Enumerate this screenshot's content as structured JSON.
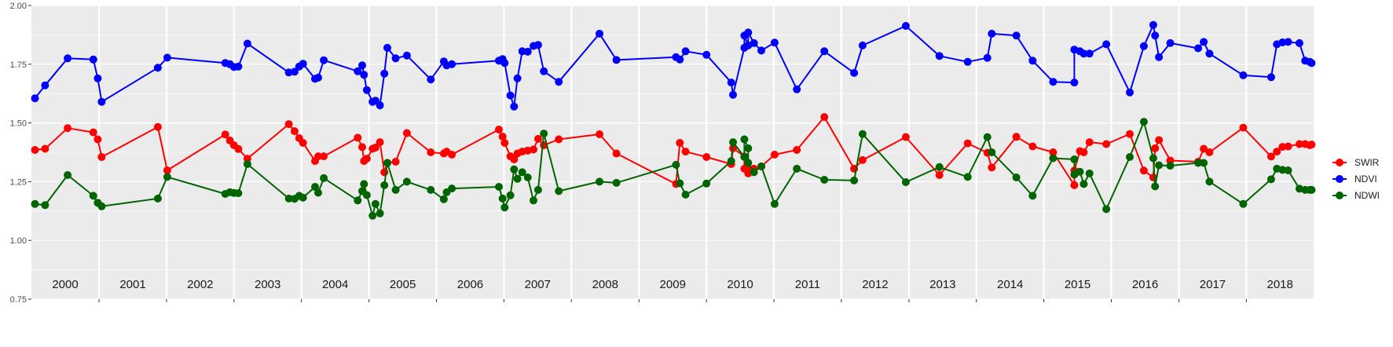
{
  "chart_data": {
    "type": "line",
    "title": "",
    "xlabel": "",
    "ylabel": "",
    "ylim": [
      0.75,
      2.0
    ],
    "y_ticks": [
      "0.75",
      "1.00",
      "1.25",
      "1.50",
      "1.75",
      "2.00"
    ],
    "xlim": [
      "2000-01-01",
      "2018-12-31"
    ],
    "year_labels": [
      "2000",
      "2001",
      "2002",
      "2003",
      "2004",
      "2005",
      "2006",
      "2007",
      "2008",
      "2009",
      "2010",
      "2011",
      "2012",
      "2013",
      "2014",
      "2015",
      "2016",
      "2017",
      "2018"
    ],
    "grid": true,
    "legend_position": "right",
    "series": [
      {
        "name": "SWIR",
        "color": "#ff0000",
        "x": [
          "2000-01-20",
          "2000-03-15",
          "2000-07-15",
          "2000-12-01",
          "2000-12-25",
          "2001-01-15",
          "2001-11-15",
          "2002-01-05",
          "2002-11-15",
          "2002-12-10",
          "2003-01-01",
          "2003-01-25",
          "2003-03-15",
          "2003-10-25",
          "2003-11-25",
          "2003-12-20",
          "2004-01-10",
          "2004-03-15",
          "2004-04-01",
          "2004-05-01",
          "2004-11-01",
          "2004-11-25",
          "2004-12-05",
          "2004-12-20",
          "2005-01-20",
          "2005-02-05",
          "2005-03-01",
          "2005-03-25",
          "2005-04-10",
          "2005-05-25",
          "2005-07-25",
          "2005-12-01",
          "2006-02-10",
          "2006-02-25",
          "2006-03-25",
          "2006-12-05",
          "2006-12-25",
          "2007-01-05",
          "2007-02-05",
          "2007-02-25",
          "2007-03-15",
          "2007-04-10",
          "2007-05-10",
          "2007-06-10",
          "2007-07-05",
          "2007-08-05",
          "2007-10-25",
          "2008-06-01",
          "2008-09-01",
          "2009-07-20",
          "2009-08-10",
          "2009-09-10",
          "2010-01-01",
          "2010-05-15",
          "2010-05-25",
          "2010-07-25",
          "2010-07-25",
          "2010-08-15",
          "2010-08-15",
          "2010-09-15",
          "2010-10-25",
          "2011-01-05",
          "2011-05-05",
          "2011-10-01",
          "2012-03-10",
          "2012-04-25",
          "2012-12-15",
          "2013-06-15",
          "2013-11-15",
          "2014-03-01",
          "2014-03-25",
          "2014-08-05",
          "2014-11-01",
          "2015-02-20",
          "2015-06-15",
          "2015-06-15",
          "2015-07-15",
          "2015-08-05",
          "2015-09-05",
          "2015-12-05",
          "2016-04-10",
          "2016-06-25",
          "2016-08-15",
          "2016-08-25",
          "2016-09-15",
          "2016-11-15",
          "2017-04-15",
          "2017-05-15",
          "2017-06-15",
          "2017-12-15",
          "2018-05-15",
          "2018-06-15",
          "2018-07-15",
          "2018-08-15",
          "2018-10-15",
          "2018-11-15",
          "2018-12-10",
          "2018-12-20"
        ],
        "values": [
          1.385,
          1.39,
          1.478,
          1.46,
          1.43,
          1.355,
          1.483,
          1.298,
          1.451,
          1.425,
          1.405,
          1.389,
          1.348,
          1.495,
          1.465,
          1.435,
          1.415,
          1.338,
          1.358,
          1.358,
          1.437,
          1.397,
          1.338,
          1.348,
          1.39,
          1.395,
          1.418,
          1.29,
          1.33,
          1.335,
          1.457,
          1.375,
          1.37,
          1.378,
          1.365,
          1.472,
          1.442,
          1.415,
          1.358,
          1.345,
          1.37,
          1.378,
          1.382,
          1.387,
          1.432,
          1.405,
          1.43,
          1.452,
          1.37,
          1.24,
          1.415,
          1.378,
          1.355,
          1.325,
          1.392,
          1.358,
          1.305,
          1.285,
          1.3,
          1.305,
          1.315,
          1.365,
          1.385,
          1.525,
          1.305,
          1.342,
          1.44,
          1.278,
          1.413,
          1.373,
          1.31,
          1.441,
          1.4,
          1.375,
          1.235,
          1.297,
          1.38,
          1.375,
          1.418,
          1.41,
          1.453,
          1.297,
          1.268,
          1.392,
          1.427,
          1.34,
          1.335,
          1.39,
          1.375,
          1.48,
          1.357,
          1.378,
          1.398,
          1.4,
          1.41,
          1.41,
          1.405,
          1.408
        ]
      },
      {
        "name": "NDVI",
        "color": "#0000ff",
        "x": [
          "2000-01-20",
          "2000-03-15",
          "2000-07-15",
          "2000-12-01",
          "2000-12-25",
          "2001-01-15",
          "2001-11-15",
          "2002-01-05",
          "2002-11-15",
          "2002-12-10",
          "2003-01-01",
          "2003-01-25",
          "2003-03-15",
          "2003-10-25",
          "2003-11-25",
          "2003-12-20",
          "2004-01-10",
          "2004-03-15",
          "2004-04-01",
          "2004-05-01",
          "2004-11-01",
          "2004-11-25",
          "2004-12-05",
          "2004-12-20",
          "2005-01-20",
          "2005-02-05",
          "2005-03-01",
          "2005-03-25",
          "2005-04-10",
          "2005-05-25",
          "2005-07-25",
          "2005-12-01",
          "2006-02-10",
          "2006-02-25",
          "2006-03-25",
          "2006-12-05",
          "2006-12-25",
          "2007-01-05",
          "2007-02-05",
          "2007-02-25",
          "2007-03-15",
          "2007-04-10",
          "2007-05-10",
          "2007-06-10",
          "2007-07-05",
          "2007-08-05",
          "2007-10-25",
          "2008-06-01",
          "2008-09-01",
          "2009-07-20",
          "2009-08-10",
          "2009-09-10",
          "2010-01-01",
          "2010-05-15",
          "2010-05-25",
          "2010-07-25",
          "2010-07-25",
          "2010-08-15",
          "2010-08-15",
          "2010-09-15",
          "2010-10-25",
          "2011-01-05",
          "2011-05-05",
          "2011-10-01",
          "2012-03-10",
          "2012-04-25",
          "2012-12-15",
          "2013-06-15",
          "2013-11-15",
          "2014-03-01",
          "2014-03-25",
          "2014-08-05",
          "2014-11-01",
          "2015-02-20",
          "2015-06-15",
          "2015-06-15",
          "2015-07-15",
          "2015-08-05",
          "2015-09-05",
          "2015-12-05",
          "2016-04-10",
          "2016-06-25",
          "2016-08-15",
          "2016-08-25",
          "2016-09-15",
          "2016-11-15",
          "2017-04-15",
          "2017-05-15",
          "2017-06-15",
          "2017-12-15",
          "2018-05-15",
          "2018-06-15",
          "2018-07-15",
          "2018-08-15",
          "2018-10-15",
          "2018-11-15",
          "2018-12-10",
          "2018-12-20"
        ],
        "values": [
          1.605,
          1.66,
          1.775,
          1.77,
          1.69,
          1.59,
          1.735,
          1.778,
          1.755,
          1.75,
          1.738,
          1.74,
          1.838,
          1.715,
          1.718,
          1.74,
          1.752,
          1.688,
          1.693,
          1.767,
          1.72,
          1.745,
          1.705,
          1.64,
          1.59,
          1.595,
          1.575,
          1.71,
          1.82,
          1.775,
          1.787,
          1.685,
          1.762,
          1.745,
          1.75,
          1.765,
          1.772,
          1.755,
          1.617,
          1.57,
          1.69,
          1.805,
          1.803,
          1.828,
          1.832,
          1.72,
          1.675,
          1.88,
          1.768,
          1.78,
          1.77,
          1.805,
          1.79,
          1.672,
          1.62,
          1.82,
          1.872,
          1.83,
          1.885,
          1.84,
          1.808,
          1.842,
          1.643,
          1.805,
          1.713,
          1.83,
          1.913,
          1.785,
          1.76,
          1.777,
          1.88,
          1.872,
          1.765,
          1.675,
          1.672,
          1.812,
          1.805,
          1.795,
          1.795,
          1.835,
          1.63,
          1.827,
          1.917,
          1.872,
          1.78,
          1.84,
          1.818,
          1.845,
          1.795,
          1.703,
          1.695,
          1.835,
          1.843,
          1.845,
          1.84,
          1.765,
          1.76,
          1.755
        ]
      },
      {
        "name": "NDWI",
        "color": "#006400",
        "x": [
          "2000-01-20",
          "2000-03-15",
          "2000-07-15",
          "2000-12-01",
          "2000-12-25",
          "2001-01-15",
          "2001-11-15",
          "2002-01-05",
          "2002-11-15",
          "2002-12-10",
          "2003-01-01",
          "2003-01-25",
          "2003-03-15",
          "2003-10-25",
          "2003-11-25",
          "2003-12-20",
          "2004-01-10",
          "2004-03-15",
          "2004-04-01",
          "2004-05-01",
          "2004-11-01",
          "2004-11-25",
          "2004-12-05",
          "2004-12-20",
          "2005-01-20",
          "2005-02-05",
          "2005-03-01",
          "2005-03-25",
          "2005-04-10",
          "2005-05-25",
          "2005-07-25",
          "2005-12-01",
          "2006-02-10",
          "2006-02-25",
          "2006-03-25",
          "2006-12-05",
          "2006-12-25",
          "2007-01-05",
          "2007-02-05",
          "2007-02-25",
          "2007-03-15",
          "2007-04-10",
          "2007-05-10",
          "2007-06-10",
          "2007-07-05",
          "2007-08-05",
          "2007-10-25",
          "2008-06-01",
          "2008-09-01",
          "2009-07-20",
          "2009-08-10",
          "2009-09-10",
          "2010-01-01",
          "2010-05-15",
          "2010-05-25",
          "2010-07-25",
          "2010-07-25",
          "2010-08-15",
          "2010-08-15",
          "2010-09-15",
          "2010-10-25",
          "2011-01-05",
          "2011-05-05",
          "2011-10-01",
          "2012-03-10",
          "2012-04-25",
          "2012-12-15",
          "2013-06-15",
          "2013-11-15",
          "2014-03-01",
          "2014-03-25",
          "2014-08-05",
          "2014-11-01",
          "2015-02-20",
          "2015-06-15",
          "2015-06-15",
          "2015-07-15",
          "2015-08-05",
          "2015-09-05",
          "2015-12-05",
          "2016-04-10",
          "2016-06-25",
          "2016-08-15",
          "2016-08-25",
          "2016-09-15",
          "2016-11-15",
          "2017-04-15",
          "2017-05-15",
          "2017-06-15",
          "2017-12-15",
          "2018-05-15",
          "2018-06-15",
          "2018-07-15",
          "2018-08-15",
          "2018-10-15",
          "2018-11-15",
          "2018-12-10",
          "2018-12-20"
        ],
        "values": [
          1.155,
          1.15,
          1.278,
          1.19,
          1.16,
          1.145,
          1.178,
          1.27,
          1.198,
          1.205,
          1.202,
          1.201,
          1.325,
          1.178,
          1.177,
          1.19,
          1.182,
          1.228,
          1.203,
          1.265,
          1.17,
          1.21,
          1.24,
          1.193,
          1.105,
          1.155,
          1.115,
          1.235,
          1.33,
          1.215,
          1.25,
          1.215,
          1.175,
          1.205,
          1.221,
          1.228,
          1.178,
          1.14,
          1.192,
          1.302,
          1.262,
          1.29,
          1.268,
          1.17,
          1.215,
          1.455,
          1.21,
          1.25,
          1.245,
          1.322,
          1.243,
          1.195,
          1.242,
          1.338,
          1.418,
          1.355,
          1.43,
          1.392,
          1.33,
          1.29,
          1.315,
          1.155,
          1.305,
          1.258,
          1.255,
          1.453,
          1.248,
          1.312,
          1.27,
          1.44,
          1.375,
          1.268,
          1.19,
          1.35,
          1.345,
          1.28,
          1.292,
          1.24,
          1.285,
          1.133,
          1.355,
          1.505,
          1.35,
          1.23,
          1.32,
          1.318,
          1.33,
          1.33,
          1.25,
          1.155,
          1.26,
          1.305,
          1.3,
          1.298,
          1.22,
          1.215,
          1.215,
          1.215
        ]
      }
    ]
  }
}
